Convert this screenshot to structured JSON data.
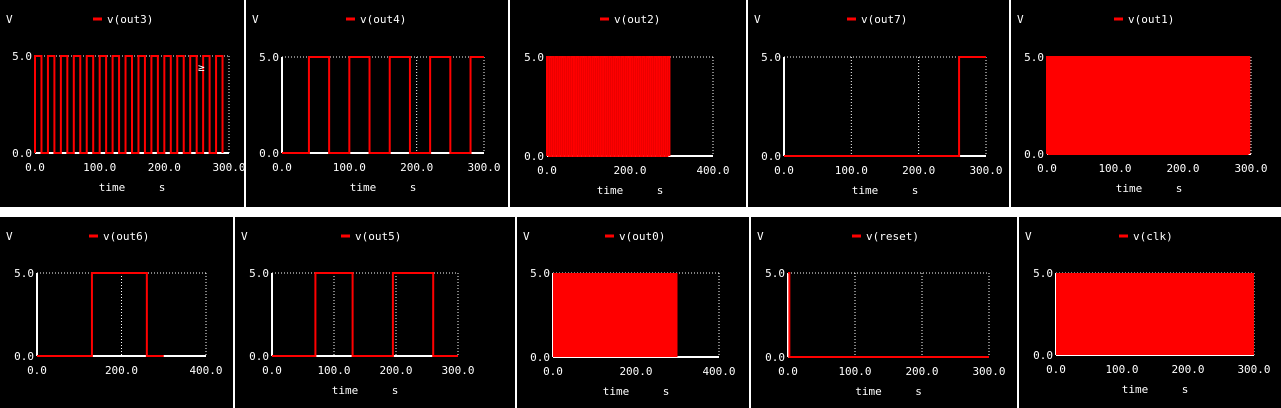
{
  "colors": {
    "background": "#000000",
    "signal": "#ff0000",
    "axis": "#ffffff",
    "text": "#ffffff"
  },
  "chart_data": [
    {
      "type": "line",
      "ylabel": "V",
      "xlabel": "time",
      "xunit": "s",
      "series": [
        {
          "name": "v(out3)",
          "mode": "square",
          "on": 5,
          "low": 0,
          "start": 0,
          "period": 20,
          "duty": 0.5,
          "phase": 0,
          "x_end": 300
        }
      ],
      "xlim": [
        0,
        300
      ],
      "ylim": [
        0,
        5
      ],
      "xticks": [
        0,
        100,
        200,
        300
      ],
      "xticklabels": [
        "0.0",
        "100.0",
        "200.0",
        "300.0"
      ],
      "yticks": [
        0,
        5
      ],
      "yticklabels": [
        "0.0",
        "5.0"
      ],
      "annotation": "≥"
    },
    {
      "type": "line",
      "ylabel": "V",
      "xlabel": "time",
      "xunit": "s",
      "series": [
        {
          "name": "v(out4)",
          "mode": "square",
          "on": 5,
          "low": 0,
          "start": 40,
          "period": 60,
          "duty": 0.5,
          "phase": 0,
          "x_end": 300
        }
      ],
      "xlim": [
        0,
        300
      ],
      "ylim": [
        0,
        5
      ],
      "xticks": [
        0,
        100,
        200,
        300
      ],
      "xticklabels": [
        "0.0",
        "100.0",
        "200.0",
        "300.0"
      ],
      "yticks": [
        0,
        5
      ],
      "yticklabels": [
        "0.0",
        "5.0"
      ]
    },
    {
      "type": "line",
      "ylabel": "",
      "xlabel": "time",
      "xunit": "s",
      "series": [
        {
          "name": "v(out2)",
          "mode": "square",
          "on": 5,
          "low": 0,
          "start": 0,
          "period": 10,
          "duty": 0.5,
          "phase": 0,
          "x_end": 300
        }
      ],
      "xlim": [
        0,
        400
      ],
      "ylim": [
        0,
        5
      ],
      "xticks": [
        0,
        200,
        400
      ],
      "xticklabels": [
        "0.0",
        "200.0",
        "400.0"
      ],
      "yticks": [
        0,
        5
      ],
      "yticklabels": [
        "0.0",
        "5.0"
      ]
    },
    {
      "type": "line",
      "ylabel": "V",
      "xlabel": "time",
      "xunit": "s",
      "series": [
        {
          "name": "v(out7)",
          "mode": "steps",
          "points": [
            [
              0,
              0
            ],
            [
              260,
              0
            ],
            [
              260,
              5
            ],
            [
              300,
              5
            ]
          ]
        }
      ],
      "xlim": [
        0,
        300
      ],
      "ylim": [
        0,
        5
      ],
      "xticks": [
        0,
        100,
        200,
        300
      ],
      "xticklabels": [
        "0.0",
        "100.0",
        "200.0",
        "300.0"
      ],
      "yticks": [
        0,
        5
      ],
      "yticklabels": [
        "0.0",
        "5.0"
      ]
    },
    {
      "type": "line",
      "ylabel": "V",
      "xlabel": "time",
      "xunit": "s",
      "series": [
        {
          "name": "v(out1)",
          "mode": "square",
          "on": 5,
          "low": 0,
          "start": 0,
          "period": 5,
          "duty": 0.5,
          "phase": 0,
          "x_end": 300
        }
      ],
      "xlim": [
        0,
        300
      ],
      "ylim": [
        0,
        5
      ],
      "xticks": [
        0,
        100,
        200,
        300
      ],
      "xticklabels": [
        "0.0",
        "100.0",
        "200.0",
        "300.0"
      ],
      "yticks": [
        0,
        5
      ],
      "yticklabels": [
        "0.0",
        "5.0"
      ]
    },
    {
      "type": "line",
      "ylabel": "V",
      "xlabel": "",
      "xunit": "",
      "series": [
        {
          "name": "v(out6)",
          "mode": "steps",
          "points": [
            [
              0,
              0
            ],
            [
              130,
              0
            ],
            [
              130,
              5
            ],
            [
              260,
              5
            ],
            [
              260,
              0
            ],
            [
              300,
              0
            ]
          ]
        }
      ],
      "xlim": [
        0,
        400
      ],
      "ylim": [
        0,
        5
      ],
      "xticks": [
        0,
        200,
        400
      ],
      "xticklabels": [
        "0.0",
        "200.0",
        "400.0"
      ],
      "yticks": [
        0,
        5
      ],
      "yticklabels": [
        "0.0",
        "5.0"
      ]
    },
    {
      "type": "line",
      "ylabel": "V",
      "xlabel": "time",
      "xunit": "s",
      "series": [
        {
          "name": "v(out5)",
          "mode": "steps",
          "points": [
            [
              0,
              0
            ],
            [
              70,
              0
            ],
            [
              70,
              5
            ],
            [
              130,
              5
            ],
            [
              130,
              0
            ],
            [
              195,
              0
            ],
            [
              195,
              5
            ],
            [
              260,
              5
            ],
            [
              260,
              0
            ],
            [
              300,
              0
            ]
          ]
        }
      ],
      "xlim": [
        0,
        300
      ],
      "ylim": [
        0,
        5
      ],
      "xticks": [
        0,
        100,
        200,
        300
      ],
      "xticklabels": [
        "0.0",
        "100.0",
        "200.0",
        "300.0"
      ],
      "yticks": [
        0,
        5
      ],
      "yticklabels": [
        "0.0",
        "5.0"
      ]
    },
    {
      "type": "line",
      "ylabel": "V",
      "xlabel": "time",
      "xunit": "s",
      "series": [
        {
          "name": "v(out0)",
          "mode": "fill",
          "on": 5,
          "start": 0,
          "x_end": 300
        }
      ],
      "xlim": [
        0,
        400
      ],
      "ylim": [
        0,
        5
      ],
      "xticks": [
        0,
        200,
        400
      ],
      "xticklabels": [
        "0.0",
        "200.0",
        "400.0"
      ],
      "yticks": [
        0,
        5
      ],
      "yticklabels": [
        "0.0",
        "5.0"
      ]
    },
    {
      "type": "line",
      "ylabel": "V",
      "xlabel": "time",
      "xunit": "s",
      "series": [
        {
          "name": "v(reset)",
          "mode": "steps",
          "points": [
            [
              0,
              5
            ],
            [
              2,
              5
            ],
            [
              2,
              0
            ],
            [
              300,
              0
            ]
          ]
        }
      ],
      "xlim": [
        0,
        300
      ],
      "ylim": [
        0,
        5
      ],
      "xticks": [
        0,
        100,
        200,
        300
      ],
      "xticklabels": [
        "0.0",
        "100.0",
        "200.0",
        "300.0"
      ],
      "yticks": [
        0,
        5
      ],
      "yticklabels": [
        "0.0",
        "5.0"
      ]
    },
    {
      "type": "line",
      "ylabel": "V",
      "xlabel": "time",
      "xunit": "s",
      "series": [
        {
          "name": "v(clk)",
          "mode": "fill",
          "on": 5,
          "start": 0,
          "x_end": 300
        }
      ],
      "xlim": [
        0,
        300
      ],
      "ylim": [
        0,
        5
      ],
      "xticks": [
        0,
        100,
        200,
        300
      ],
      "xticklabels": [
        "0.0",
        "100.0",
        "200.0",
        "300.0"
      ],
      "yticks": [
        0,
        5
      ],
      "yticklabels": [
        "0.0",
        "5.0"
      ]
    }
  ]
}
